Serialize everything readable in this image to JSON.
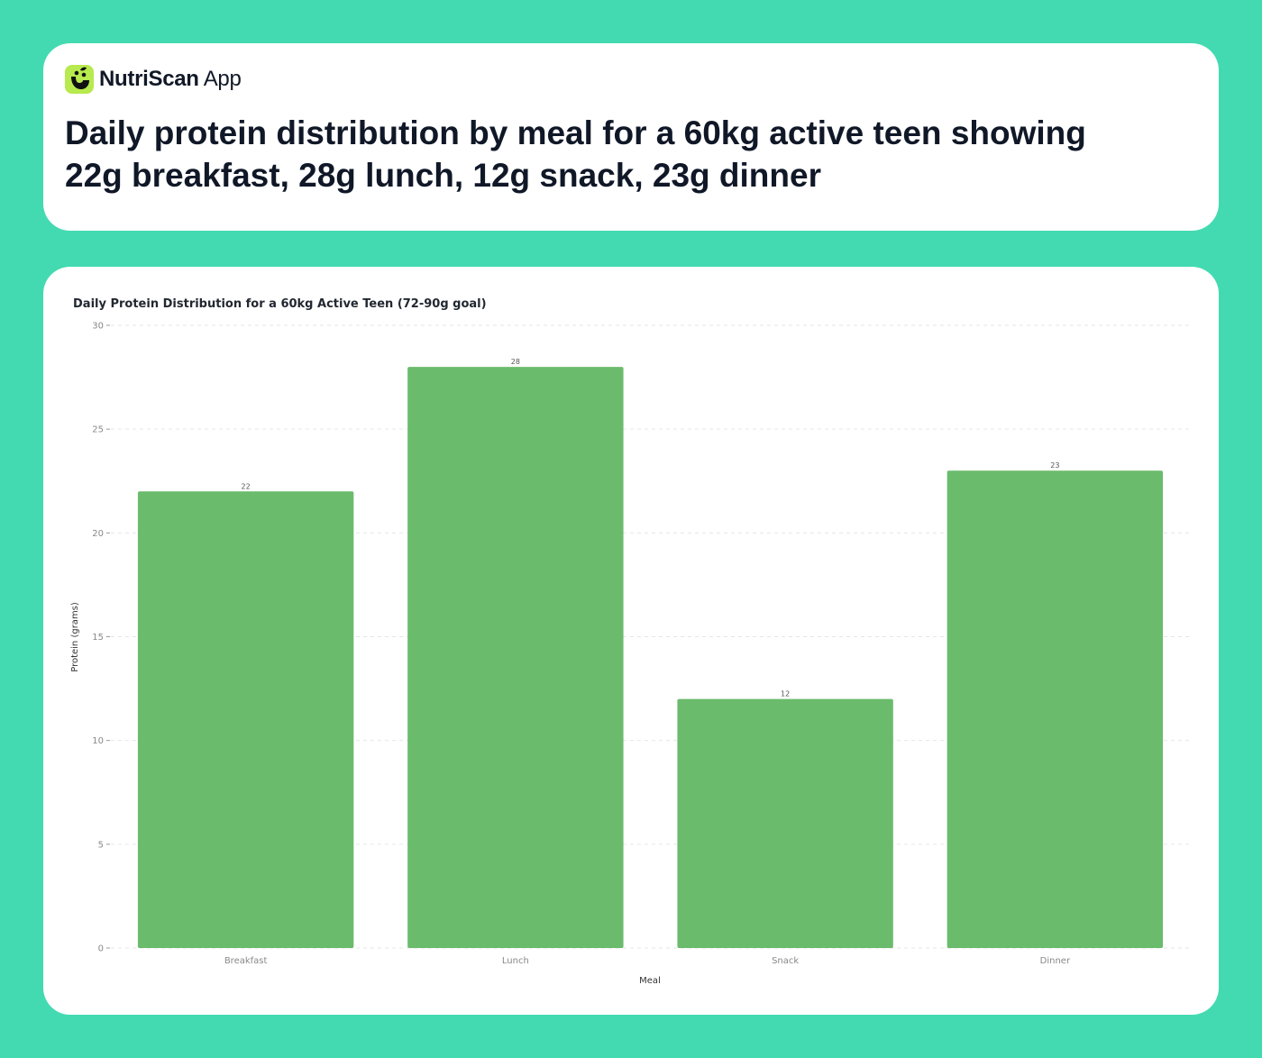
{
  "brand": {
    "name_bold": "NutriScan",
    "name_light": "App",
    "logo_icon": "smiley-leaf-icon",
    "logo_color": "#b7ea4e"
  },
  "headline": "Daily protein distribution by meal for a 60kg active teen showing 22g breakfast, 28g lunch, 12g snack, 23g dinner",
  "colors": {
    "background": "#43dab2",
    "card": "#ffffff",
    "bar": "#6bbb6c"
  },
  "chart_data": {
    "type": "bar",
    "title": "Daily Protein Distribution for a 60kg Active Teen (72-90g goal)",
    "xlabel": "Meal",
    "ylabel": "Protein (grams)",
    "categories": [
      "Breakfast",
      "Lunch",
      "Snack",
      "Dinner"
    ],
    "values": [
      22,
      28,
      12,
      23
    ],
    "data_labels": [
      "22",
      "28",
      "12",
      "23"
    ],
    "ylim": [
      0,
      30
    ],
    "yticks": [
      0,
      5,
      10,
      15,
      20,
      25,
      30
    ],
    "grid": "horizontal dashed",
    "legend": "none"
  }
}
